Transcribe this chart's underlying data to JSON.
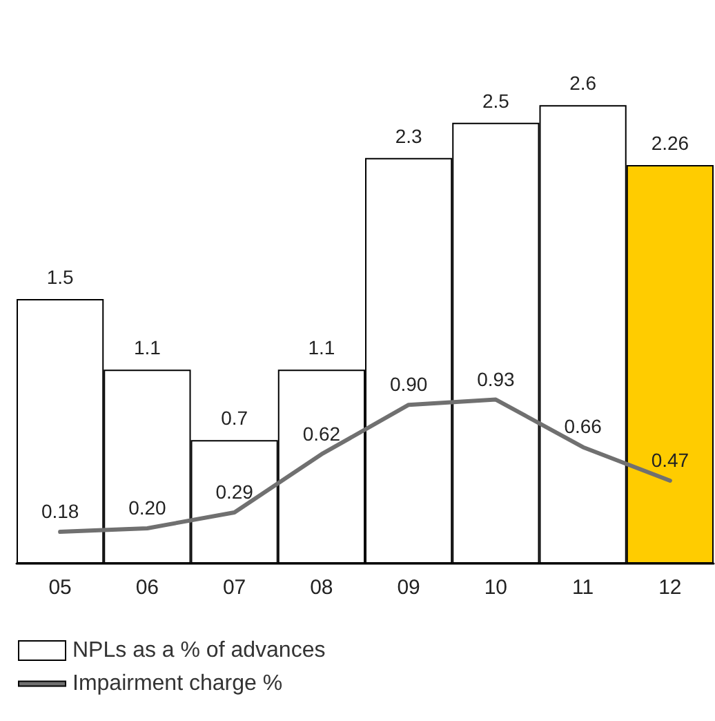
{
  "chart_data": {
    "type": "bar",
    "categories": [
      "05",
      "06",
      "07",
      "08",
      "09",
      "10",
      "11",
      "12"
    ],
    "series": [
      {
        "name": "NPLs as a % of advances",
        "color": "#ffffff",
        "colors": [
          "#ffffff",
          "#ffffff",
          "#ffffff",
          "#ffffff",
          "#ffffff",
          "#ffffff",
          "#ffffff",
          "#ffcc00"
        ],
        "values": [
          1.5,
          1.1,
          0.7,
          1.1,
          2.3,
          2.5,
          2.6,
          2.26
        ]
      },
      {
        "name": "Impairment charge %",
        "type": "line",
        "color": "#707070",
        "values": [
          0.18,
          0.2,
          0.29,
          0.62,
          0.9,
          0.93,
          0.66,
          0.47
        ],
        "value_labels": [
          "0.18",
          "0.20",
          "0.29",
          "0.62",
          "0.90",
          "0.93",
          "0.66",
          "0.47"
        ]
      }
    ],
    "data_labels": true,
    "grid": false,
    "legend": "bottom left",
    "marker": "none",
    "line_style": "solid"
  }
}
